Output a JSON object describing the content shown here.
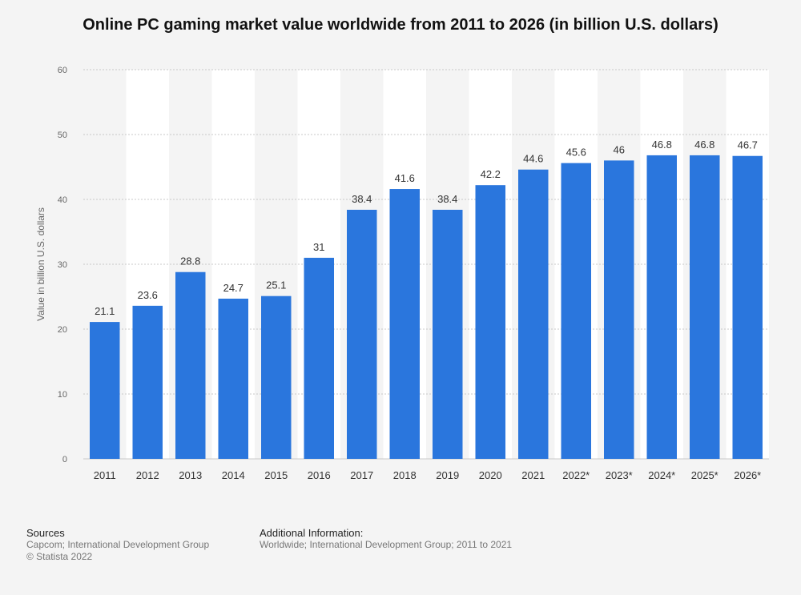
{
  "chart_data": {
    "type": "bar",
    "title": "Online PC gaming market value worldwide from 2011 to 2026 (in billion U.S. dollars)",
    "xlabel": "",
    "ylabel": "Value in billion U.S. dollars",
    "categories": [
      "2011",
      "2012",
      "2013",
      "2014",
      "2015",
      "2016",
      "2017",
      "2018",
      "2019",
      "2020",
      "2021",
      "2022*",
      "2023*",
      "2024*",
      "2025*",
      "2026*"
    ],
    "values": [
      21.1,
      23.6,
      28.8,
      24.7,
      25.1,
      31,
      38.4,
      41.6,
      38.4,
      42.2,
      44.6,
      45.6,
      46,
      46.8,
      46.8,
      46.7
    ],
    "value_labels": [
      "21.1",
      "23.6",
      "28.8",
      "24.7",
      "25.1",
      "31",
      "38.4",
      "41.6",
      "38.4",
      "42.2",
      "44.6",
      "45.6",
      "46",
      "46.8",
      "46.8",
      "46.7"
    ],
    "ylim": [
      0,
      60
    ],
    "yticks": [
      0,
      10,
      20,
      30,
      40,
      50,
      60
    ],
    "grid": true,
    "bar_color": "#2a76dd",
    "alternating_band_color": "#ffffff"
  },
  "footer": {
    "sources_heading": "Sources",
    "sources_line1": "Capcom; International Development Group",
    "sources_line2": "© Statista 2022",
    "additional_heading": "Additional Information:",
    "additional_text": "Worldwide; International Development Group; 2011 to 2021"
  }
}
